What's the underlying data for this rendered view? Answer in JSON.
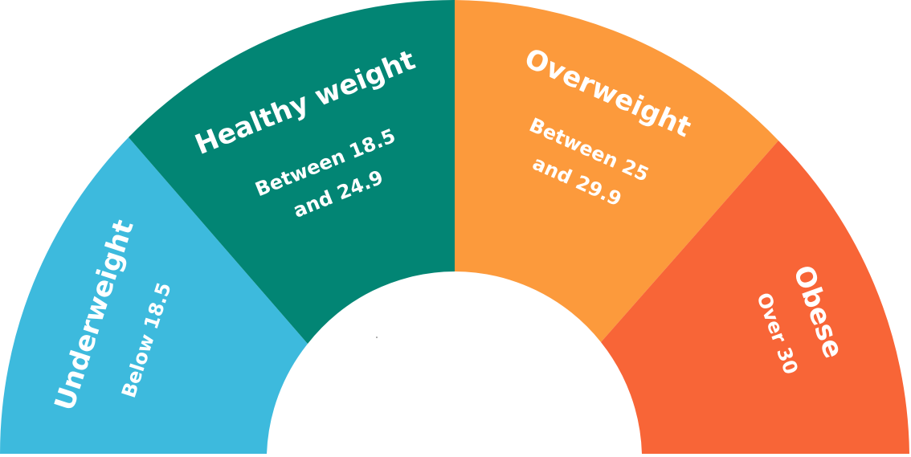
{
  "segments": [
    {
      "key": "underweight",
      "title": "Underweight",
      "range_lines": [
        "Below 18.5"
      ],
      "color": "#3DBADD"
    },
    {
      "key": "healthy",
      "title": "Healthy weight",
      "range_lines": [
        "Between 18.5",
        "and 24.9"
      ],
      "color": "#028574"
    },
    {
      "key": "overweight",
      "title": "Overweight",
      "range_lines": [
        "Between 25",
        "and 29.9"
      ],
      "color": "#FC9A3C"
    },
    {
      "key": "obese",
      "title": "Obese",
      "range_lines": [
        "Over 30"
      ],
      "color": "#F86537"
    }
  ]
}
